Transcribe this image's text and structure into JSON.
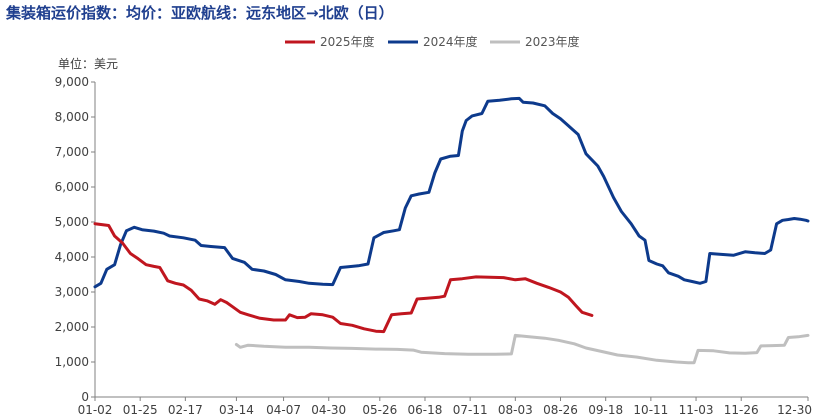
{
  "title": "集装箱运价指数：均价：亚欧航线：远东地区→北欧（日）",
  "chart_data": {
    "type": "line",
    "title": "集装箱运价指数：均价：亚欧航线：远东地区→北欧（日）",
    "unit": "单位：美元",
    "ylim": [
      0,
      9000
    ],
    "y_ticks": [
      0,
      1000,
      2000,
      3000,
      4000,
      5000,
      6000,
      7000,
      8000,
      9000
    ],
    "y_tick_labels": [
      "0",
      "1,000",
      "2,000",
      "3,000",
      "4,000",
      "5,000",
      "6,000",
      "7,000",
      "8,000",
      "9,000"
    ],
    "x_domain": [
      "01-02",
      "12-30"
    ],
    "x_tick_labels": [
      "01-02",
      "01-25",
      "02-17",
      "03-14",
      "04-07",
      "04-30",
      "05-26",
      "06-18",
      "07-11",
      "08-03",
      "08-26",
      "09-18",
      "10-11",
      "11-03",
      "11-26",
      "12-30"
    ],
    "x_tick_dates": [
      "01-02",
      "01-25",
      "02-17",
      "03-14",
      "04-07",
      "04-30",
      "05-26",
      "06-18",
      "07-11",
      "08-03",
      "08-26",
      "09-18",
      "10-11",
      "11-03",
      "11-26",
      "12-30"
    ],
    "grid": false,
    "legend_position": "top-center",
    "series": [
      {
        "name": "2025年度",
        "color": "#c0161f",
        "points": [
          [
            "01-02",
            4950
          ],
          [
            "01-06",
            4920
          ],
          [
            "01-09",
            4900
          ],
          [
            "01-12",
            4600
          ],
          [
            "01-16",
            4400
          ],
          [
            "01-20",
            4100
          ],
          [
            "01-24",
            3950
          ],
          [
            "01-28",
            3780
          ],
          [
            "02-01",
            3730
          ],
          [
            "02-04",
            3700
          ],
          [
            "02-08",
            3320
          ],
          [
            "02-12",
            3250
          ],
          [
            "02-16",
            3200
          ],
          [
            "02-20",
            3050
          ],
          [
            "02-24",
            2800
          ],
          [
            "02-28",
            2750
          ],
          [
            "03-03",
            2650
          ],
          [
            "03-06",
            2780
          ],
          [
            "03-09",
            2700
          ],
          [
            "03-12",
            2580
          ],
          [
            "03-16",
            2420
          ],
          [
            "03-20",
            2350
          ],
          [
            "03-26",
            2250
          ],
          [
            "04-02",
            2200
          ],
          [
            "04-08",
            2200
          ],
          [
            "04-10",
            2350
          ],
          [
            "04-14",
            2270
          ],
          [
            "04-18",
            2280
          ],
          [
            "04-21",
            2380
          ],
          [
            "04-27",
            2350
          ],
          [
            "05-02",
            2280
          ],
          [
            "05-06",
            2100
          ],
          [
            "05-12",
            2050
          ],
          [
            "05-18",
            1950
          ],
          [
            "05-24",
            1880
          ],
          [
            "05-28",
            1870
          ],
          [
            "06-01",
            2350
          ],
          [
            "06-06",
            2380
          ],
          [
            "06-11",
            2400
          ],
          [
            "06-14",
            2800
          ],
          [
            "06-19",
            2820
          ],
          [
            "06-25",
            2850
          ],
          [
            "06-28",
            2880
          ],
          [
            "07-01",
            3350
          ],
          [
            "07-07",
            3380
          ],
          [
            "07-14",
            3430
          ],
          [
            "07-21",
            3420
          ],
          [
            "07-28",
            3410
          ],
          [
            "08-03",
            3350
          ],
          [
            "08-08",
            3380
          ],
          [
            "08-14",
            3250
          ],
          [
            "08-20",
            3130
          ],
          [
            "08-26",
            3000
          ],
          [
            "08-30",
            2850
          ],
          [
            "09-03",
            2600
          ],
          [
            "09-06",
            2420
          ],
          [
            "09-11",
            2330
          ]
        ]
      },
      {
        "name": "2024年度",
        "color": "#0d3a8c",
        "points": [
          [
            "01-02",
            3150
          ],
          [
            "01-05",
            3250
          ],
          [
            "01-08",
            3650
          ],
          [
            "01-12",
            3780
          ],
          [
            "01-15",
            4350
          ],
          [
            "01-18",
            4750
          ],
          [
            "01-22",
            4850
          ],
          [
            "01-26",
            4780
          ],
          [
            "02-01",
            4740
          ],
          [
            "02-06",
            4680
          ],
          [
            "02-09",
            4600
          ],
          [
            "02-16",
            4550
          ],
          [
            "02-22",
            4480
          ],
          [
            "02-25",
            4330
          ],
          [
            "03-01",
            4300
          ],
          [
            "03-08",
            4270
          ],
          [
            "03-12",
            3960
          ],
          [
            "03-18",
            3850
          ],
          [
            "03-22",
            3650
          ],
          [
            "03-28",
            3600
          ],
          [
            "04-03",
            3500
          ],
          [
            "04-08",
            3350
          ],
          [
            "04-15",
            3300
          ],
          [
            "04-20",
            3250
          ],
          [
            "04-27",
            3220
          ],
          [
            "05-02",
            3210
          ],
          [
            "05-06",
            3700
          ],
          [
            "05-10",
            3720
          ],
          [
            "05-15",
            3750
          ],
          [
            "05-20",
            3800
          ],
          [
            "05-23",
            4550
          ],
          [
            "05-28",
            4700
          ],
          [
            "06-02",
            4750
          ],
          [
            "06-05",
            4780
          ],
          [
            "06-08",
            5400
          ],
          [
            "06-11",
            5750
          ],
          [
            "06-15",
            5800
          ],
          [
            "06-20",
            5850
          ],
          [
            "06-23",
            6400
          ],
          [
            "06-26",
            6800
          ],
          [
            "07-01",
            6880
          ],
          [
            "07-05",
            6900
          ],
          [
            "07-07",
            7600
          ],
          [
            "07-09",
            7900
          ],
          [
            "07-12",
            8030
          ],
          [
            "07-17",
            8100
          ],
          [
            "07-20",
            8450
          ],
          [
            "07-26",
            8480
          ],
          [
            "08-01",
            8520
          ],
          [
            "08-05",
            8530
          ],
          [
            "08-07",
            8420
          ],
          [
            "08-12",
            8400
          ],
          [
            "08-18",
            8320
          ],
          [
            "08-22",
            8100
          ],
          [
            "08-26",
            7950
          ],
          [
            "08-30",
            7750
          ],
          [
            "09-04",
            7500
          ],
          [
            "09-08",
            6950
          ],
          [
            "09-14",
            6600
          ],
          [
            "09-17",
            6300
          ],
          [
            "09-22",
            5700
          ],
          [
            "09-26",
            5300
          ],
          [
            "10-01",
            4950
          ],
          [
            "10-05",
            4600
          ],
          [
            "10-08",
            4480
          ],
          [
            "10-10",
            3900
          ],
          [
            "10-14",
            3800
          ],
          [
            "10-17",
            3750
          ],
          [
            "10-20",
            3550
          ],
          [
            "10-25",
            3450
          ],
          [
            "10-28",
            3350
          ],
          [
            "11-01",
            3300
          ],
          [
            "11-05",
            3250
          ],
          [
            "11-08",
            3300
          ],
          [
            "11-10",
            4100
          ],
          [
            "11-15",
            4080
          ],
          [
            "11-22",
            4050
          ],
          [
            "11-28",
            4150
          ],
          [
            "12-03",
            4120
          ],
          [
            "12-08",
            4100
          ],
          [
            "12-11",
            4200
          ],
          [
            "12-14",
            4950
          ],
          [
            "12-17",
            5050
          ],
          [
            "12-20",
            5070
          ],
          [
            "12-23",
            5100
          ],
          [
            "12-26",
            5080
          ],
          [
            "12-29",
            5050
          ],
          [
            "12-30",
            5030
          ]
        ]
      },
      {
        "name": "2023年度",
        "color": "#bfbfbf",
        "points": [
          [
            "03-14",
            1500
          ],
          [
            "03-16",
            1420
          ],
          [
            "03-20",
            1480
          ],
          [
            "03-28",
            1450
          ],
          [
            "04-08",
            1420
          ],
          [
            "04-20",
            1420
          ],
          [
            "05-01",
            1400
          ],
          [
            "05-12",
            1390
          ],
          [
            "05-24",
            1370
          ],
          [
            "06-04",
            1360
          ],
          [
            "06-12",
            1340
          ],
          [
            "06-16",
            1280
          ],
          [
            "06-28",
            1240
          ],
          [
            "07-10",
            1220
          ],
          [
            "07-24",
            1220
          ],
          [
            "08-01",
            1230
          ],
          [
            "08-03",
            1760
          ],
          [
            "08-10",
            1720
          ],
          [
            "08-18",
            1680
          ],
          [
            "08-25",
            1620
          ],
          [
            "09-02",
            1520
          ],
          [
            "09-08",
            1400
          ],
          [
            "09-16",
            1300
          ],
          [
            "09-24",
            1200
          ],
          [
            "10-04",
            1140
          ],
          [
            "10-14",
            1050
          ],
          [
            "10-24",
            1000
          ],
          [
            "10-30",
            980
          ],
          [
            "11-02",
            980
          ],
          [
            "11-04",
            1330
          ],
          [
            "11-12",
            1320
          ],
          [
            "11-20",
            1260
          ],
          [
            "11-28",
            1250
          ],
          [
            "12-04",
            1270
          ],
          [
            "12-06",
            1460
          ],
          [
            "12-12",
            1470
          ],
          [
            "12-18",
            1480
          ],
          [
            "12-20",
            1700
          ],
          [
            "12-25",
            1720
          ],
          [
            "12-30",
            1760
          ]
        ]
      }
    ]
  }
}
